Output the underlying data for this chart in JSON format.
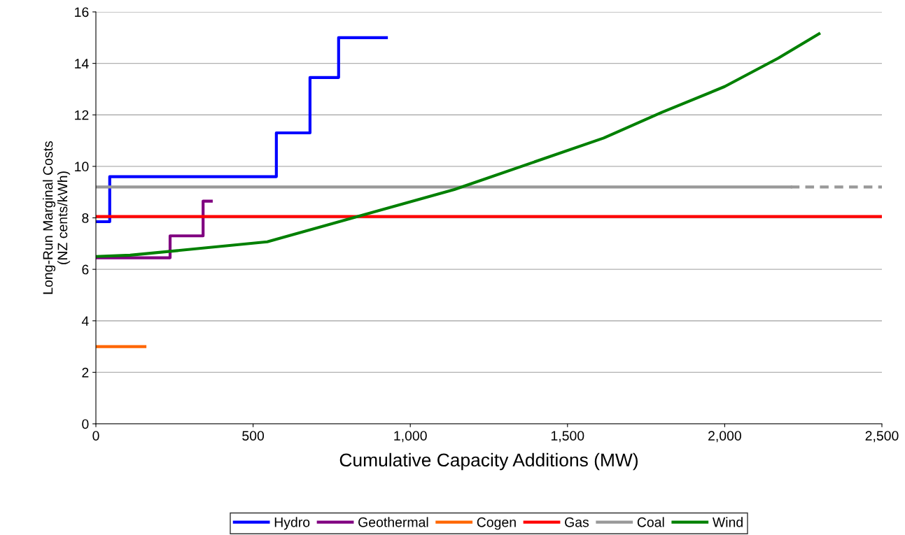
{
  "chart_data": {
    "type": "line",
    "xlabel": "Cumulative Capacity Additions (MW)",
    "ylabel": "Long-Run Marginal Costs\n(NZ cents/kWh)",
    "xlim": [
      0,
      2500
    ],
    "xticks": [
      0,
      500,
      {
        "value": 1000,
        "label": "1,000"
      },
      {
        "value": 1500,
        "label": "1,500"
      },
      {
        "value": 2000,
        "label": "2,000"
      },
      {
        "value": 2500,
        "label": "2,500"
      }
    ],
    "ylim": [
      0,
      16
    ],
    "yticks": [
      0,
      2,
      4,
      6,
      8,
      10,
      12,
      14,
      16
    ],
    "grid": "y",
    "legend": "bottom",
    "marker": "none",
    "series": [
      {
        "name": "Hydro",
        "type": "step",
        "color": "#0000ff",
        "x": [
          0,
          44,
          574,
          681,
          772,
          924
        ],
        "values": [
          7.85,
          9.6,
          11.3,
          13.45,
          15,
          15
        ]
      },
      {
        "name": "Geothermal",
        "type": "step",
        "color": "#800080",
        "x": [
          0,
          236,
          341,
          367
        ],
        "values": [
          6.45,
          7.3,
          8.65,
          8.65
        ]
      },
      {
        "name": "Cogen",
        "color": "#ff6600",
        "x": [
          0,
          156
        ],
        "values": [
          3,
          3
        ]
      },
      {
        "name": "Gas",
        "color": "#ff0000",
        "x": [
          0,
          2500
        ],
        "values": [
          8.05,
          8.05
        ]
      },
      {
        "name": "Coal",
        "color": "#999999",
        "x": [
          0,
          2210
        ],
        "values": [
          9.2,
          9.2
        ]
      },
      {
        "color": "#999999",
        "line_style": "dashed",
        "x": [
          2210,
          2500
        ],
        "values": [
          9.2,
          9.2
        ]
      },
      {
        "name": "Wind",
        "color": "#008000",
        "x": [
          0,
          109,
          545,
          1140,
          1615,
          1800,
          2000,
          2170,
          2300
        ],
        "values": [
          6.5,
          6.55,
          7.07,
          9.1,
          11.1,
          12.1,
          13.1,
          14.2,
          15.15
        ]
      }
    ]
  }
}
